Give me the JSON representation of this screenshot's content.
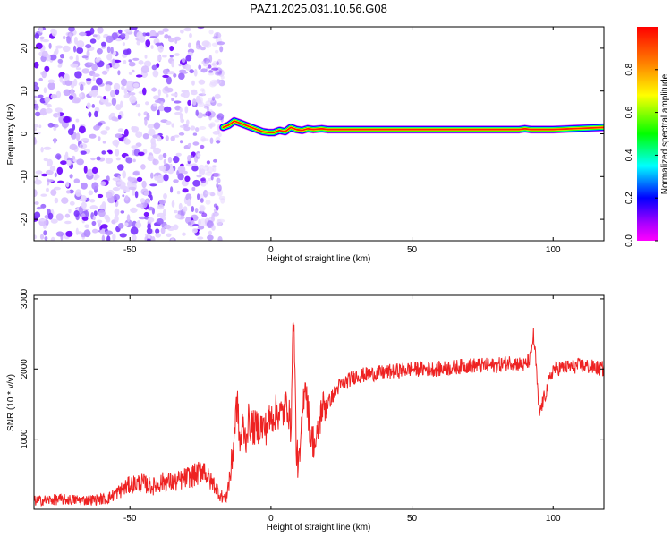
{
  "figure": {
    "title": "PAZ1.2025.031.10.56.G08"
  },
  "chart_data": [
    {
      "type": "heatmap",
      "title": "PAZ1.2025.031.10.56.G08",
      "xlabel": "Height of straight line (km)",
      "ylabel": "Frequency (Hz)",
      "xlim": [
        -84,
        118
      ],
      "ylim": [
        -25,
        25
      ],
      "x_ticks": [
        -50,
        0,
        50,
        100
      ],
      "y_ticks": [
        -20,
        -10,
        0,
        10,
        20
      ],
      "colorbar": {
        "label": "Normalized spectral amplitude",
        "range": [
          0,
          1
        ],
        "ticks": [
          "0.0",
          "0.2",
          "0.4",
          "0.6",
          "0.8"
        ],
        "colors": [
          "#ff00ff",
          "#8800ff",
          "#0000ff",
          "#00ffff",
          "#00ff00",
          "#ffff00",
          "#ff0000"
        ]
      },
      "noise_region": {
        "x_range": [
          -84,
          -17
        ],
        "y_range": [
          -25,
          25
        ],
        "amplitude": [
          0.0,
          0.15
        ]
      },
      "signal_track": {
        "x": [
          -17,
          -15,
          -13,
          -11,
          -9,
          -7,
          -5,
          -3,
          -1,
          1,
          3,
          5,
          7,
          9,
          11,
          13,
          15,
          18,
          20,
          30,
          60,
          88,
          90,
          92,
          94,
          100,
          118
        ],
        "frequency": [
          1.5,
          2.0,
          3.0,
          2.5,
          2.0,
          1.5,
          1.0,
          0.5,
          0.3,
          0.3,
          0.8,
          0.5,
          1.5,
          1.0,
          0.8,
          1.2,
          1.0,
          1.2,
          1.0,
          1.0,
          1.0,
          1.0,
          1.2,
          1.0,
          1.0,
          1.0,
          1.5
        ]
      },
      "grid": false
    },
    {
      "type": "line",
      "xlabel": "Height of straight line (km)",
      "ylabel": "SNR (10 * v/v)",
      "xlim": [
        -84,
        118
      ],
      "ylim": [
        0,
        3050
      ],
      "x_ticks": [
        -50,
        0,
        50,
        100
      ],
      "y_ticks": [
        1000,
        2000,
        3000
      ],
      "color": "#ee2222",
      "series": [
        {
          "x": [
            -84,
            -75,
            -65,
            -58,
            -54,
            -50,
            -46,
            -42,
            -38,
            -34,
            -30,
            -26,
            -24,
            -22,
            -20,
            -18,
            -16,
            -14,
            -13,
            -12,
            -11,
            -10,
            -9,
            -8,
            -6,
            -4,
            -2,
            0,
            2,
            4,
            5,
            6,
            7,
            8,
            9,
            10,
            11,
            12,
            14,
            16,
            18,
            20,
            24,
            30,
            40,
            50,
            60,
            70,
            80,
            85,
            90,
            92,
            93,
            94,
            95,
            100,
            110,
            118
          ],
          "y": [
            120,
            140,
            130,
            150,
            250,
            350,
            380,
            320,
            400,
            380,
            450,
            500,
            600,
            420,
            350,
            200,
            150,
            600,
            1100,
            1550,
            900,
            1200,
            1000,
            1250,
            1150,
            1200,
            1150,
            1300,
            1400,
            1350,
            1450,
            1500,
            1100,
            2900,
            800,
            600,
            1200,
            1900,
            1050,
            900,
            1450,
            1500,
            1750,
            1900,
            1950,
            2000,
            2000,
            2050,
            2050,
            2100,
            2050,
            2150,
            2500,
            2050,
            1350,
            2000,
            2050,
            2000
          ]
        }
      ],
      "grid": false
    }
  ]
}
